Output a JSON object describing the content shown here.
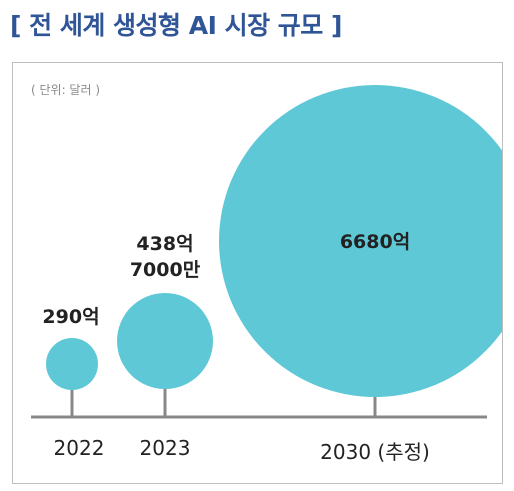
{
  "title": "[ 전 세계 생성형 AI 시장 규모 ]",
  "unit_note": "( 단위: 달러 )",
  "colors": {
    "bubble": "#5ec8d6",
    "axis": "#888888",
    "title": "#2f5597"
  },
  "chart_data": {
    "type": "bubble",
    "categories": [
      "2022",
      "2023",
      "2030 (추정)"
    ],
    "values_label": [
      "290억",
      "438억 7000만",
      "6680억"
    ],
    "values": [
      29000000000,
      43870000000,
      668000000000
    ],
    "unit": "달러",
    "title": "[ 전 세계 생성형 AI 시장 규모 ]"
  }
}
